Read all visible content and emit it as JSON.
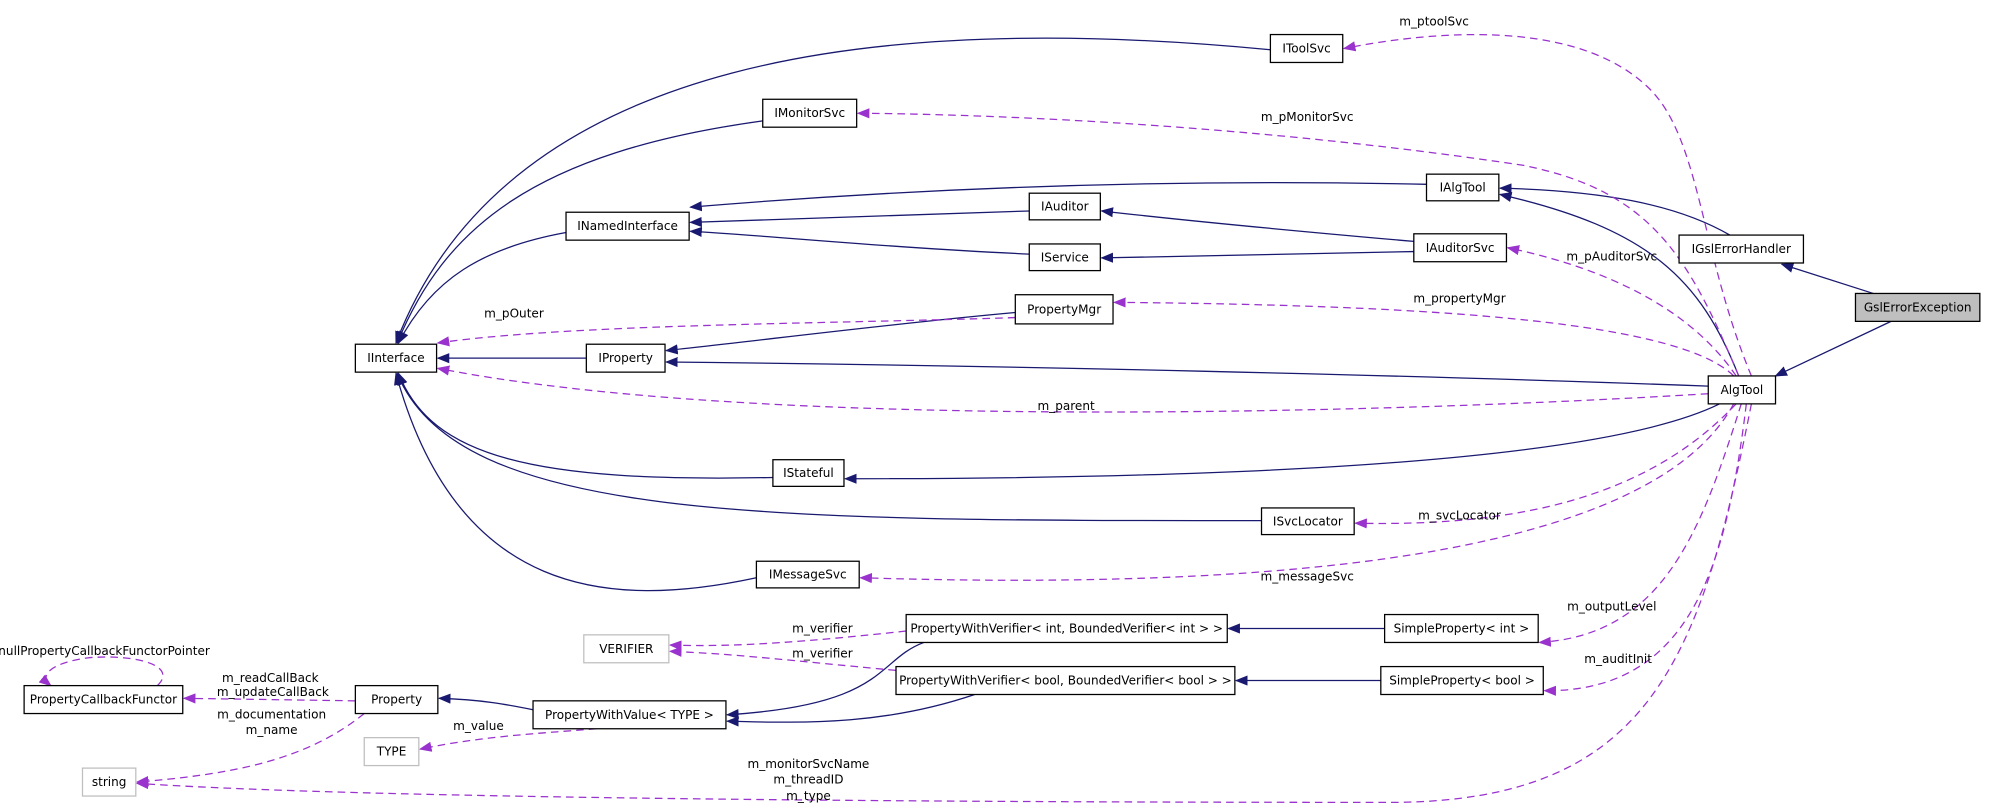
{
  "colors": {
    "inheritance": "#191970",
    "usage": "#9a32cd",
    "current_node_fill": "#bfbfbf"
  },
  "nodes": {
    "IToolSvc": "IToolSvc",
    "IMonitorSvc": "IMonitorSvc",
    "IAlgTool": "IAlgTool",
    "INamedInterface": "INamedInterface",
    "IAuditor": "IAuditor",
    "IGslErrorHandler": "IGslErrorHandler",
    "IAuditorSvc": "IAuditorSvc",
    "IService": "IService",
    "GslErrorException": "GslErrorException",
    "PropertyMgr": "PropertyMgr",
    "IInterface": "IInterface",
    "IProperty": "IProperty",
    "AlgTool": "AlgTool",
    "IStateful": "IStateful",
    "ISvcLocator": "ISvcLocator",
    "IMessageSvc": "IMessageSvc",
    "VERIFIER": "VERIFIER",
    "PWVint": "PropertyWithVerifier< int, BoundedVerifier< int > >",
    "SPint": "SimpleProperty< int >",
    "PWVbool": "PropertyWithVerifier< bool, BoundedVerifier< bool > >",
    "SPbool": "SimpleProperty< bool >",
    "PropertyCallbackFunctor": "PropertyCallbackFunctor",
    "Property": "Property",
    "PWV": "PropertyWithValue< TYPE >",
    "TYPE": "TYPE",
    "string": "string"
  },
  "edge_labels": {
    "ptoolSvc": "m_ptoolSvc",
    "pMonitorSvc": "m_pMonitorSvc",
    "pAuditorSvc": "m_pAuditorSvc",
    "propertyMgr": "m_propertyMgr",
    "pOuter": "m_pOuter",
    "parent": "m_parent",
    "svcLocator": "m_svcLocator",
    "messageSvc": "m_messageSvc",
    "outputLevel": "m_outputLevel",
    "auditInit": "m_auditInit",
    "verifier1": "m_verifier",
    "verifier2": "m_verifier",
    "nullPtr": "nullPropertyCallbackFunctorPointer",
    "readCallBack": "m_readCallBack",
    "updateCallBack": "m_updateCallBack",
    "documentation": "m_documentation",
    "name": "m_name",
    "value": "m_value",
    "monitorSvcName": "m_monitorSvcName",
    "threadID": "m_threadID",
    "type": "m_type"
  }
}
